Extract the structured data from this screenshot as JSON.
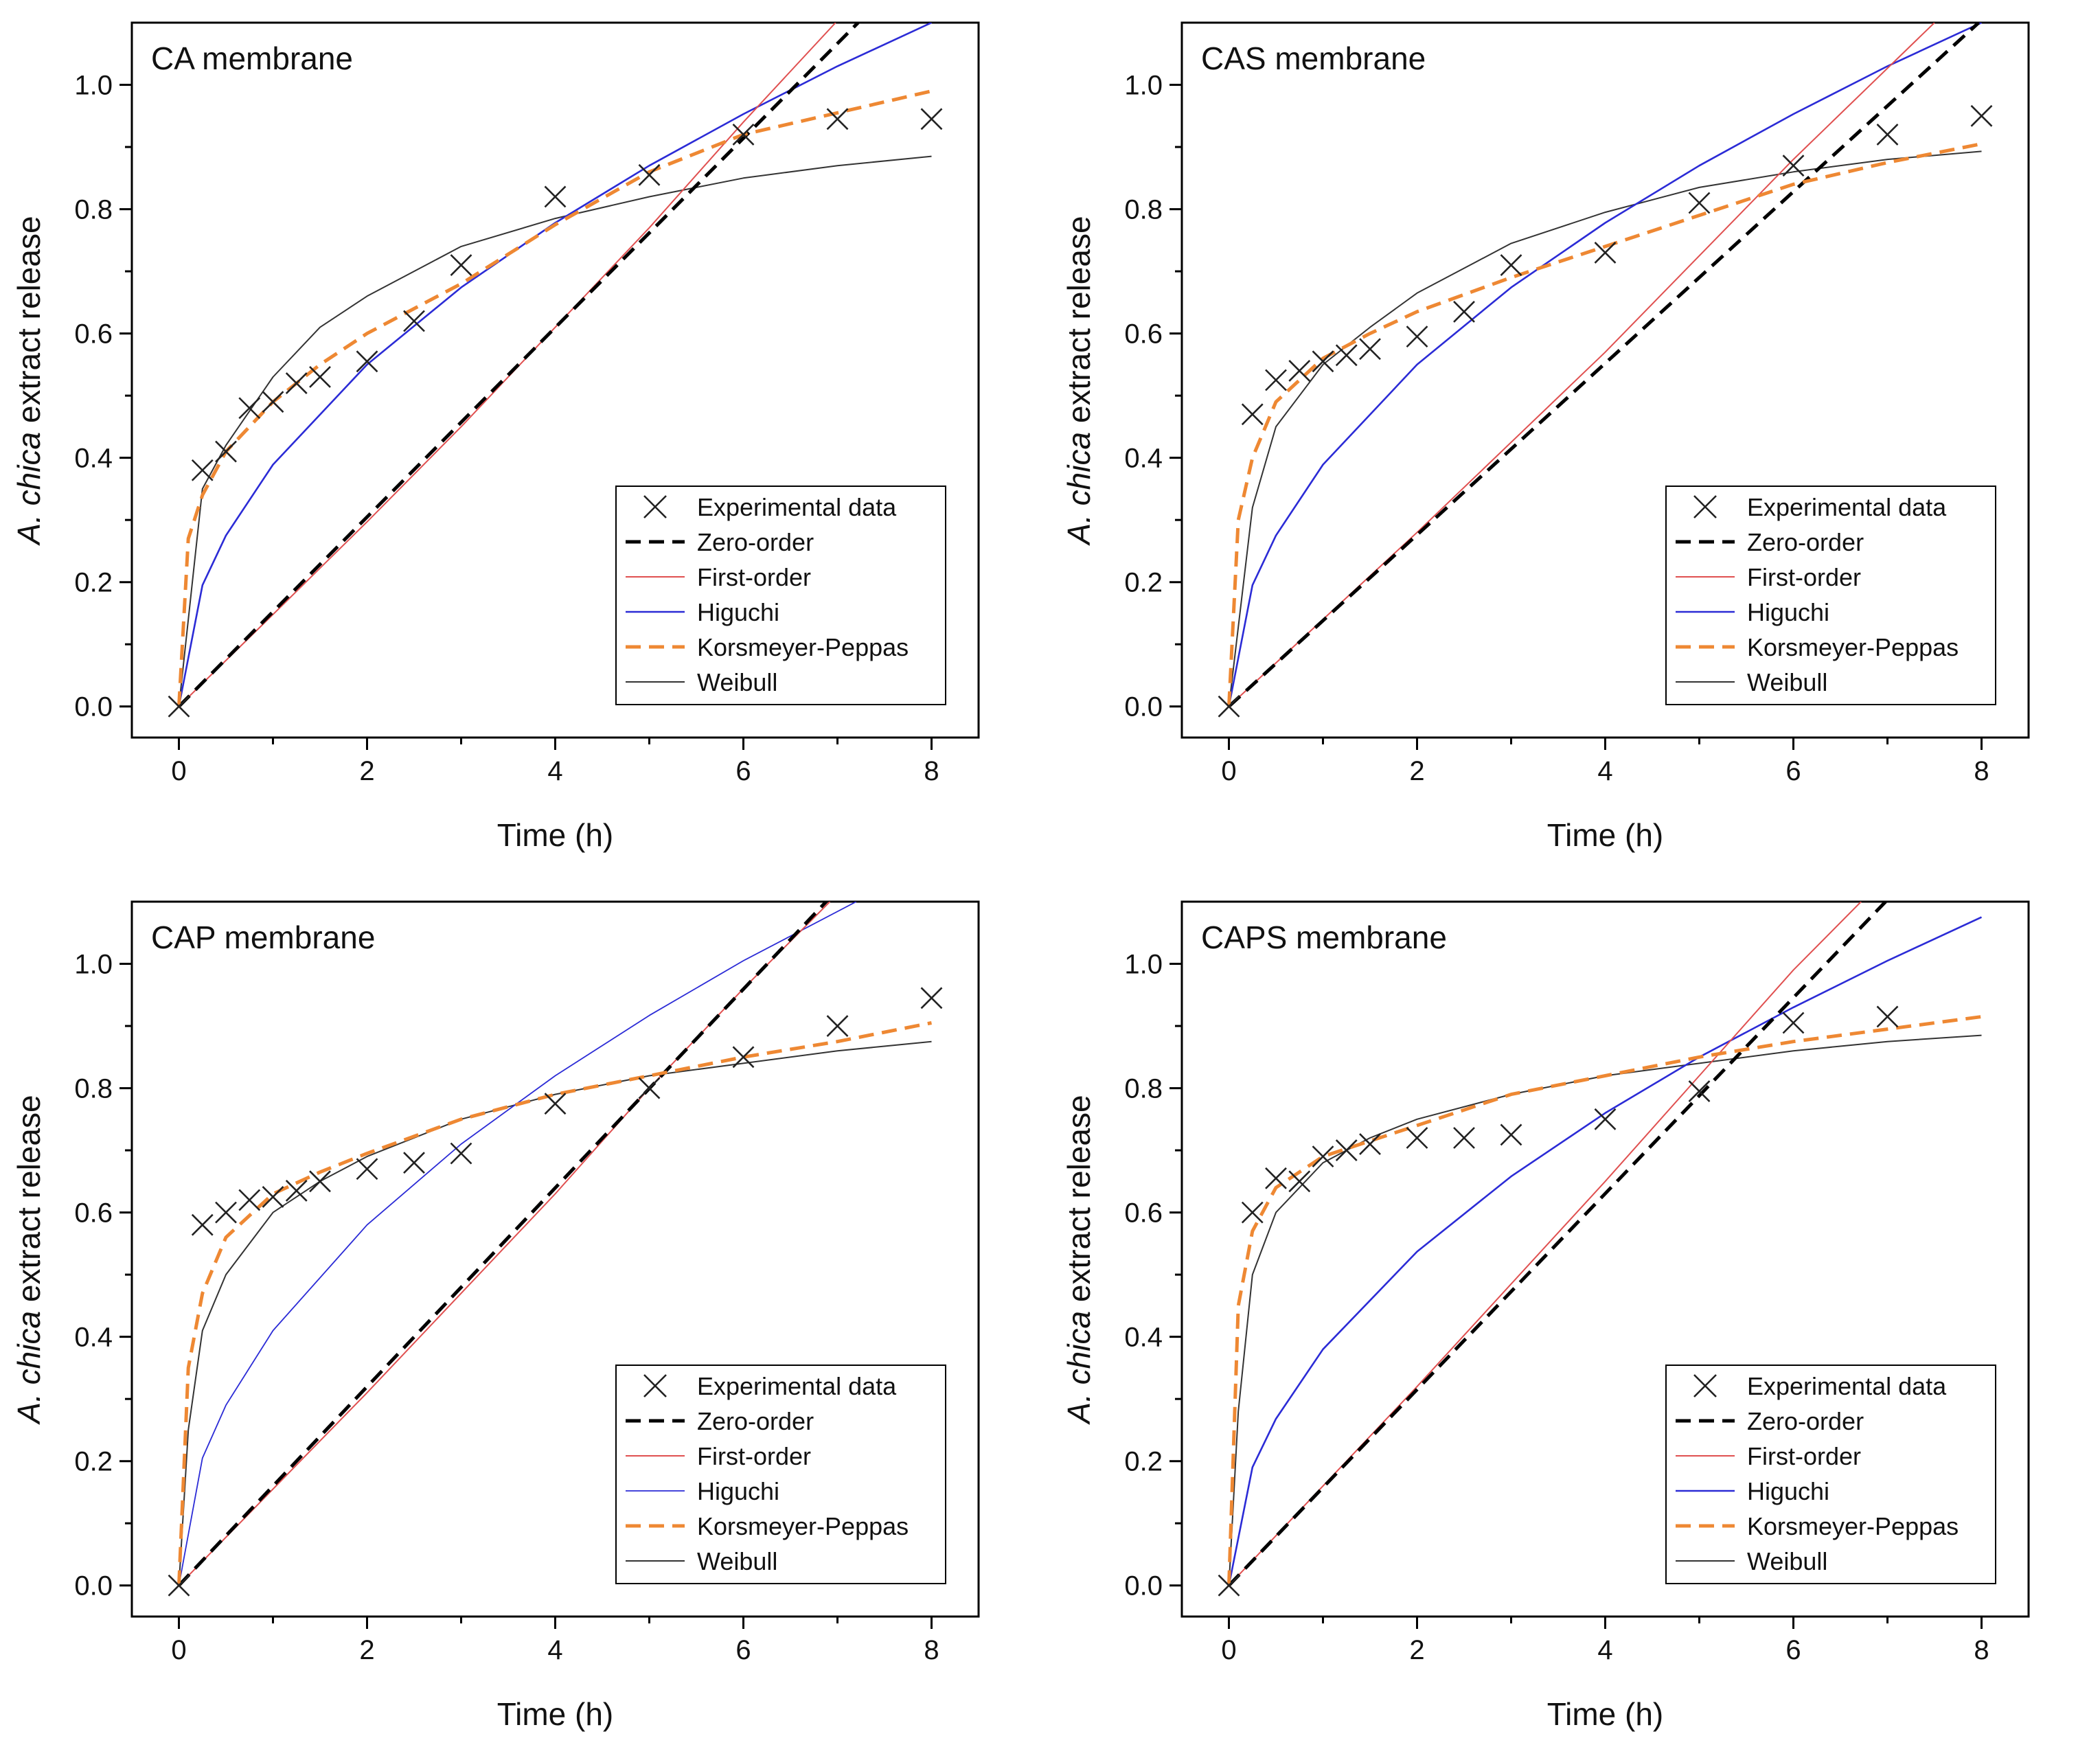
{
  "colors": {
    "experimental": "#222222",
    "zero_order": "#000000",
    "first_order": "#e05050",
    "higuchi": "#2b2bd6",
    "korsmeyer_peppas": "#ee8833",
    "weibull": "#333333"
  },
  "chart_data": [
    {
      "type": "line",
      "title": "CA membrane",
      "xlabel": "Time (h)",
      "ylabel_italic": "A. chica",
      "ylabel_rest": " extract release",
      "xlim": [
        -0.5,
        8.5
      ],
      "ylim": [
        -0.05,
        1.1
      ],
      "x_ticks": [
        "0",
        "2",
        "4",
        "6",
        "8"
      ],
      "y_ticks": [
        "0.0",
        "0.2",
        "0.4",
        "0.6",
        "0.8",
        "1.0"
      ],
      "legend_position": "bottom-right",
      "series": [
        {
          "name": "Experimental data",
          "key": "experimental",
          "style": "marker",
          "x": [
            0,
            0.25,
            0.5,
            0.75,
            1,
            1.25,
            1.5,
            2,
            2.5,
            3,
            4,
            5,
            6,
            7,
            8
          ],
          "y": [
            0,
            0.38,
            0.41,
            0.48,
            0.49,
            0.52,
            0.53,
            0.555,
            0.62,
            0.71,
            0.82,
            0.855,
            0.92,
            0.945,
            0.945
          ]
        },
        {
          "name": "Zero-order",
          "key": "zero_order",
          "style": "dashed",
          "x": [
            0,
            7.22
          ],
          "y": [
            0,
            1.1
          ]
        },
        {
          "name": "First-order",
          "key": "first_order",
          "style": "thin",
          "x": [
            0,
            1,
            2,
            3,
            4,
            5,
            6,
            6.98
          ],
          "y": [
            0,
            0.148,
            0.297,
            0.45,
            0.61,
            0.77,
            0.94,
            1.1
          ]
        },
        {
          "name": "Higuchi",
          "key": "higuchi",
          "style": "solid",
          "x": [
            0,
            0.25,
            0.5,
            1,
            2,
            3,
            4,
            5,
            6,
            7,
            8
          ],
          "y": [
            0,
            0.195,
            0.275,
            0.389,
            0.55,
            0.674,
            0.778,
            0.87,
            0.953,
            1.03,
            1.1
          ]
        },
        {
          "name": "Korsmeyer-Peppas",
          "key": "korsmeyer_peppas",
          "style": "dashed",
          "x": [
            0,
            0.1,
            0.25,
            0.5,
            1,
            1.5,
            2,
            3,
            4,
            5,
            6,
            7,
            8
          ],
          "y": [
            0,
            0.27,
            0.34,
            0.41,
            0.49,
            0.55,
            0.6,
            0.68,
            0.775,
            0.86,
            0.92,
            0.955,
            0.99
          ]
        },
        {
          "name": "Weibull",
          "key": "weibull",
          "style": "thin",
          "x": [
            0,
            0.25,
            0.5,
            1,
            1.5,
            2,
            3,
            4,
            5,
            6,
            7,
            8
          ],
          "y": [
            0,
            0.35,
            0.42,
            0.53,
            0.61,
            0.66,
            0.74,
            0.785,
            0.82,
            0.85,
            0.87,
            0.885
          ]
        }
      ]
    },
    {
      "type": "line",
      "title": "CAS membrane",
      "xlabel": "Time (h)",
      "ylabel_italic": "A. chica",
      "ylabel_rest": " extract release",
      "xlim": [
        -0.5,
        8.5
      ],
      "ylim": [
        -0.05,
        1.1
      ],
      "x_ticks": [
        "0",
        "2",
        "4",
        "6",
        "8"
      ],
      "y_ticks": [
        "0.0",
        "0.2",
        "0.4",
        "0.6",
        "0.8",
        "1.0"
      ],
      "legend_position": "bottom-right",
      "series": [
        {
          "name": "Experimental data",
          "key": "experimental",
          "style": "marker",
          "x": [
            0,
            0.25,
            0.5,
            0.75,
            1,
            1.25,
            1.5,
            2,
            2.5,
            3,
            4,
            5,
            6,
            7,
            8
          ],
          "y": [
            0,
            0.47,
            0.525,
            0.54,
            0.555,
            0.565,
            0.575,
            0.595,
            0.635,
            0.71,
            0.73,
            0.81,
            0.87,
            0.92,
            0.95
          ]
        },
        {
          "name": "Zero-order",
          "key": "zero_order",
          "style": "dashed",
          "x": [
            0,
            7.97
          ],
          "y": [
            0,
            1.1
          ]
        },
        {
          "name": "First-order",
          "key": "first_order",
          "style": "thin",
          "x": [
            0,
            2,
            4,
            6,
            7.5
          ],
          "y": [
            0,
            0.28,
            0.57,
            0.88,
            1.1
          ]
        },
        {
          "name": "Higuchi",
          "key": "higuchi",
          "style": "solid",
          "x": [
            0,
            0.25,
            0.5,
            1,
            2,
            3,
            4,
            5,
            6,
            7,
            8
          ],
          "y": [
            0,
            0.195,
            0.275,
            0.389,
            0.55,
            0.674,
            0.778,
            0.87,
            0.953,
            1.03,
            1.1
          ]
        },
        {
          "name": "Korsmeyer-Peppas",
          "key": "korsmeyer_peppas",
          "style": "dashed",
          "x": [
            0,
            0.1,
            0.25,
            0.5,
            1,
            1.5,
            2,
            3,
            4,
            5,
            6,
            7,
            8
          ],
          "y": [
            0,
            0.3,
            0.4,
            0.49,
            0.56,
            0.6,
            0.635,
            0.69,
            0.74,
            0.79,
            0.84,
            0.875,
            0.905
          ]
        },
        {
          "name": "Weibull",
          "key": "weibull",
          "style": "thin",
          "x": [
            0,
            0.25,
            0.5,
            1,
            1.5,
            2,
            3,
            4,
            5,
            6,
            7,
            8
          ],
          "y": [
            0,
            0.32,
            0.45,
            0.55,
            0.61,
            0.665,
            0.745,
            0.795,
            0.835,
            0.86,
            0.88,
            0.893
          ]
        }
      ]
    },
    {
      "type": "line",
      "title": "CAP membrane",
      "xlabel": "Time (h)",
      "ylabel_italic": "A. chica",
      "ylabel_rest": " extract release",
      "xlim": [
        -0.5,
        8.5
      ],
      "ylim": [
        -0.05,
        1.1
      ],
      "x_ticks": [
        "0",
        "2",
        "4",
        "6",
        "8"
      ],
      "y_ticks": [
        "0.0",
        "0.2",
        "0.4",
        "0.6",
        "0.8",
        "1.0"
      ],
      "legend_position": "bottom-right",
      "series": [
        {
          "name": "Experimental data",
          "key": "experimental",
          "style": "marker",
          "x": [
            0,
            0.25,
            0.5,
            0.75,
            1,
            1.25,
            1.5,
            2,
            2.5,
            3,
            4,
            5,
            6,
            7,
            8
          ],
          "y": [
            0,
            0.58,
            0.6,
            0.62,
            0.625,
            0.635,
            0.65,
            0.67,
            0.68,
            0.695,
            0.775,
            0.8,
            0.85,
            0.9,
            0.945
          ]
        },
        {
          "name": "Zero-order",
          "key": "zero_order",
          "style": "dashed",
          "x": [
            0,
            6.88
          ],
          "y": [
            0,
            1.1
          ]
        },
        {
          "name": "First-order",
          "key": "first_order",
          "style": "thin",
          "x": [
            0,
            2,
            4,
            5,
            6,
            6.92
          ],
          "y": [
            0,
            0.31,
            0.63,
            0.8,
            0.96,
            1.1
          ]
        },
        {
          "name": "Higuchi",
          "key": "higuchi",
          "style": "thin-blue",
          "x": [
            0,
            0.25,
            0.5,
            1,
            2,
            3,
            4,
            5,
            6,
            7.2
          ],
          "y": [
            0,
            0.205,
            0.29,
            0.41,
            0.58,
            0.71,
            0.82,
            0.917,
            1.005,
            1.1
          ]
        },
        {
          "name": "Korsmeyer-Peppas",
          "key": "korsmeyer_peppas",
          "style": "dashed",
          "x": [
            0,
            0.1,
            0.25,
            0.5,
            1,
            1.5,
            2,
            3,
            4,
            5,
            6,
            7,
            8
          ],
          "y": [
            0,
            0.35,
            0.47,
            0.56,
            0.63,
            0.665,
            0.695,
            0.75,
            0.79,
            0.82,
            0.85,
            0.875,
            0.905
          ]
        },
        {
          "name": "Weibull",
          "key": "weibull",
          "style": "thin",
          "x": [
            0,
            0.1,
            0.25,
            0.5,
            1,
            1.5,
            2,
            3,
            4,
            5,
            6,
            7,
            8
          ],
          "y": [
            0,
            0.25,
            0.41,
            0.5,
            0.6,
            0.65,
            0.69,
            0.75,
            0.79,
            0.82,
            0.84,
            0.86,
            0.875
          ]
        }
      ]
    },
    {
      "type": "line",
      "title": "CAPS membrane",
      "xlabel": "Time (h)",
      "ylabel_italic": "A. chica",
      "ylabel_rest": " extract release",
      "xlim": [
        -0.5,
        8.5
      ],
      "ylim": [
        -0.05,
        1.1
      ],
      "x_ticks": [
        "0",
        "2",
        "4",
        "6",
        "8"
      ],
      "y_ticks": [
        "0.0",
        "0.2",
        "0.4",
        "0.6",
        "0.8",
        "1.0"
      ],
      "legend_position": "bottom-right",
      "series": [
        {
          "name": "Experimental data",
          "key": "experimental",
          "style": "marker",
          "x": [
            0,
            0.25,
            0.5,
            0.75,
            1,
            1.25,
            1.5,
            2,
            2.5,
            3,
            4,
            5,
            6,
            7
          ],
          "y": [
            0,
            0.6,
            0.655,
            0.65,
            0.69,
            0.7,
            0.71,
            0.72,
            0.72,
            0.725,
            0.75,
            0.795,
            0.905,
            0.915
          ]
        },
        {
          "name": "Zero-order",
          "key": "zero_order",
          "style": "dashed",
          "x": [
            0,
            6.98
          ],
          "y": [
            0,
            1.1
          ]
        },
        {
          "name": "First-order",
          "key": "first_order",
          "style": "thin",
          "x": [
            0,
            2,
            4,
            5,
            6,
            6.72
          ],
          "y": [
            0,
            0.32,
            0.65,
            0.82,
            0.99,
            1.1
          ]
        },
        {
          "name": "Higuchi",
          "key": "higuchi",
          "style": "solid",
          "x": [
            0,
            0.25,
            0.5,
            1,
            2,
            3,
            4,
            5,
            6,
            7,
            8
          ],
          "y": [
            0,
            0.19,
            0.268,
            0.38,
            0.537,
            0.658,
            0.76,
            0.85,
            0.93,
            1.005,
            1.075
          ]
        },
        {
          "name": "Korsmeyer-Peppas",
          "key": "korsmeyer_peppas",
          "style": "dashed",
          "x": [
            0,
            0.1,
            0.25,
            0.5,
            1,
            1.5,
            2,
            3,
            4,
            5,
            6,
            7,
            8
          ],
          "y": [
            0,
            0.45,
            0.57,
            0.64,
            0.69,
            0.715,
            0.74,
            0.79,
            0.82,
            0.85,
            0.875,
            0.895,
            0.915
          ]
        },
        {
          "name": "Weibull",
          "key": "weibull",
          "style": "thin",
          "x": [
            0,
            0.1,
            0.25,
            0.5,
            1,
            1.5,
            2,
            3,
            4,
            5,
            6,
            7,
            8
          ],
          "y": [
            0,
            0.28,
            0.5,
            0.6,
            0.68,
            0.72,
            0.75,
            0.79,
            0.82,
            0.84,
            0.86,
            0.875,
            0.885
          ]
        }
      ]
    }
  ]
}
